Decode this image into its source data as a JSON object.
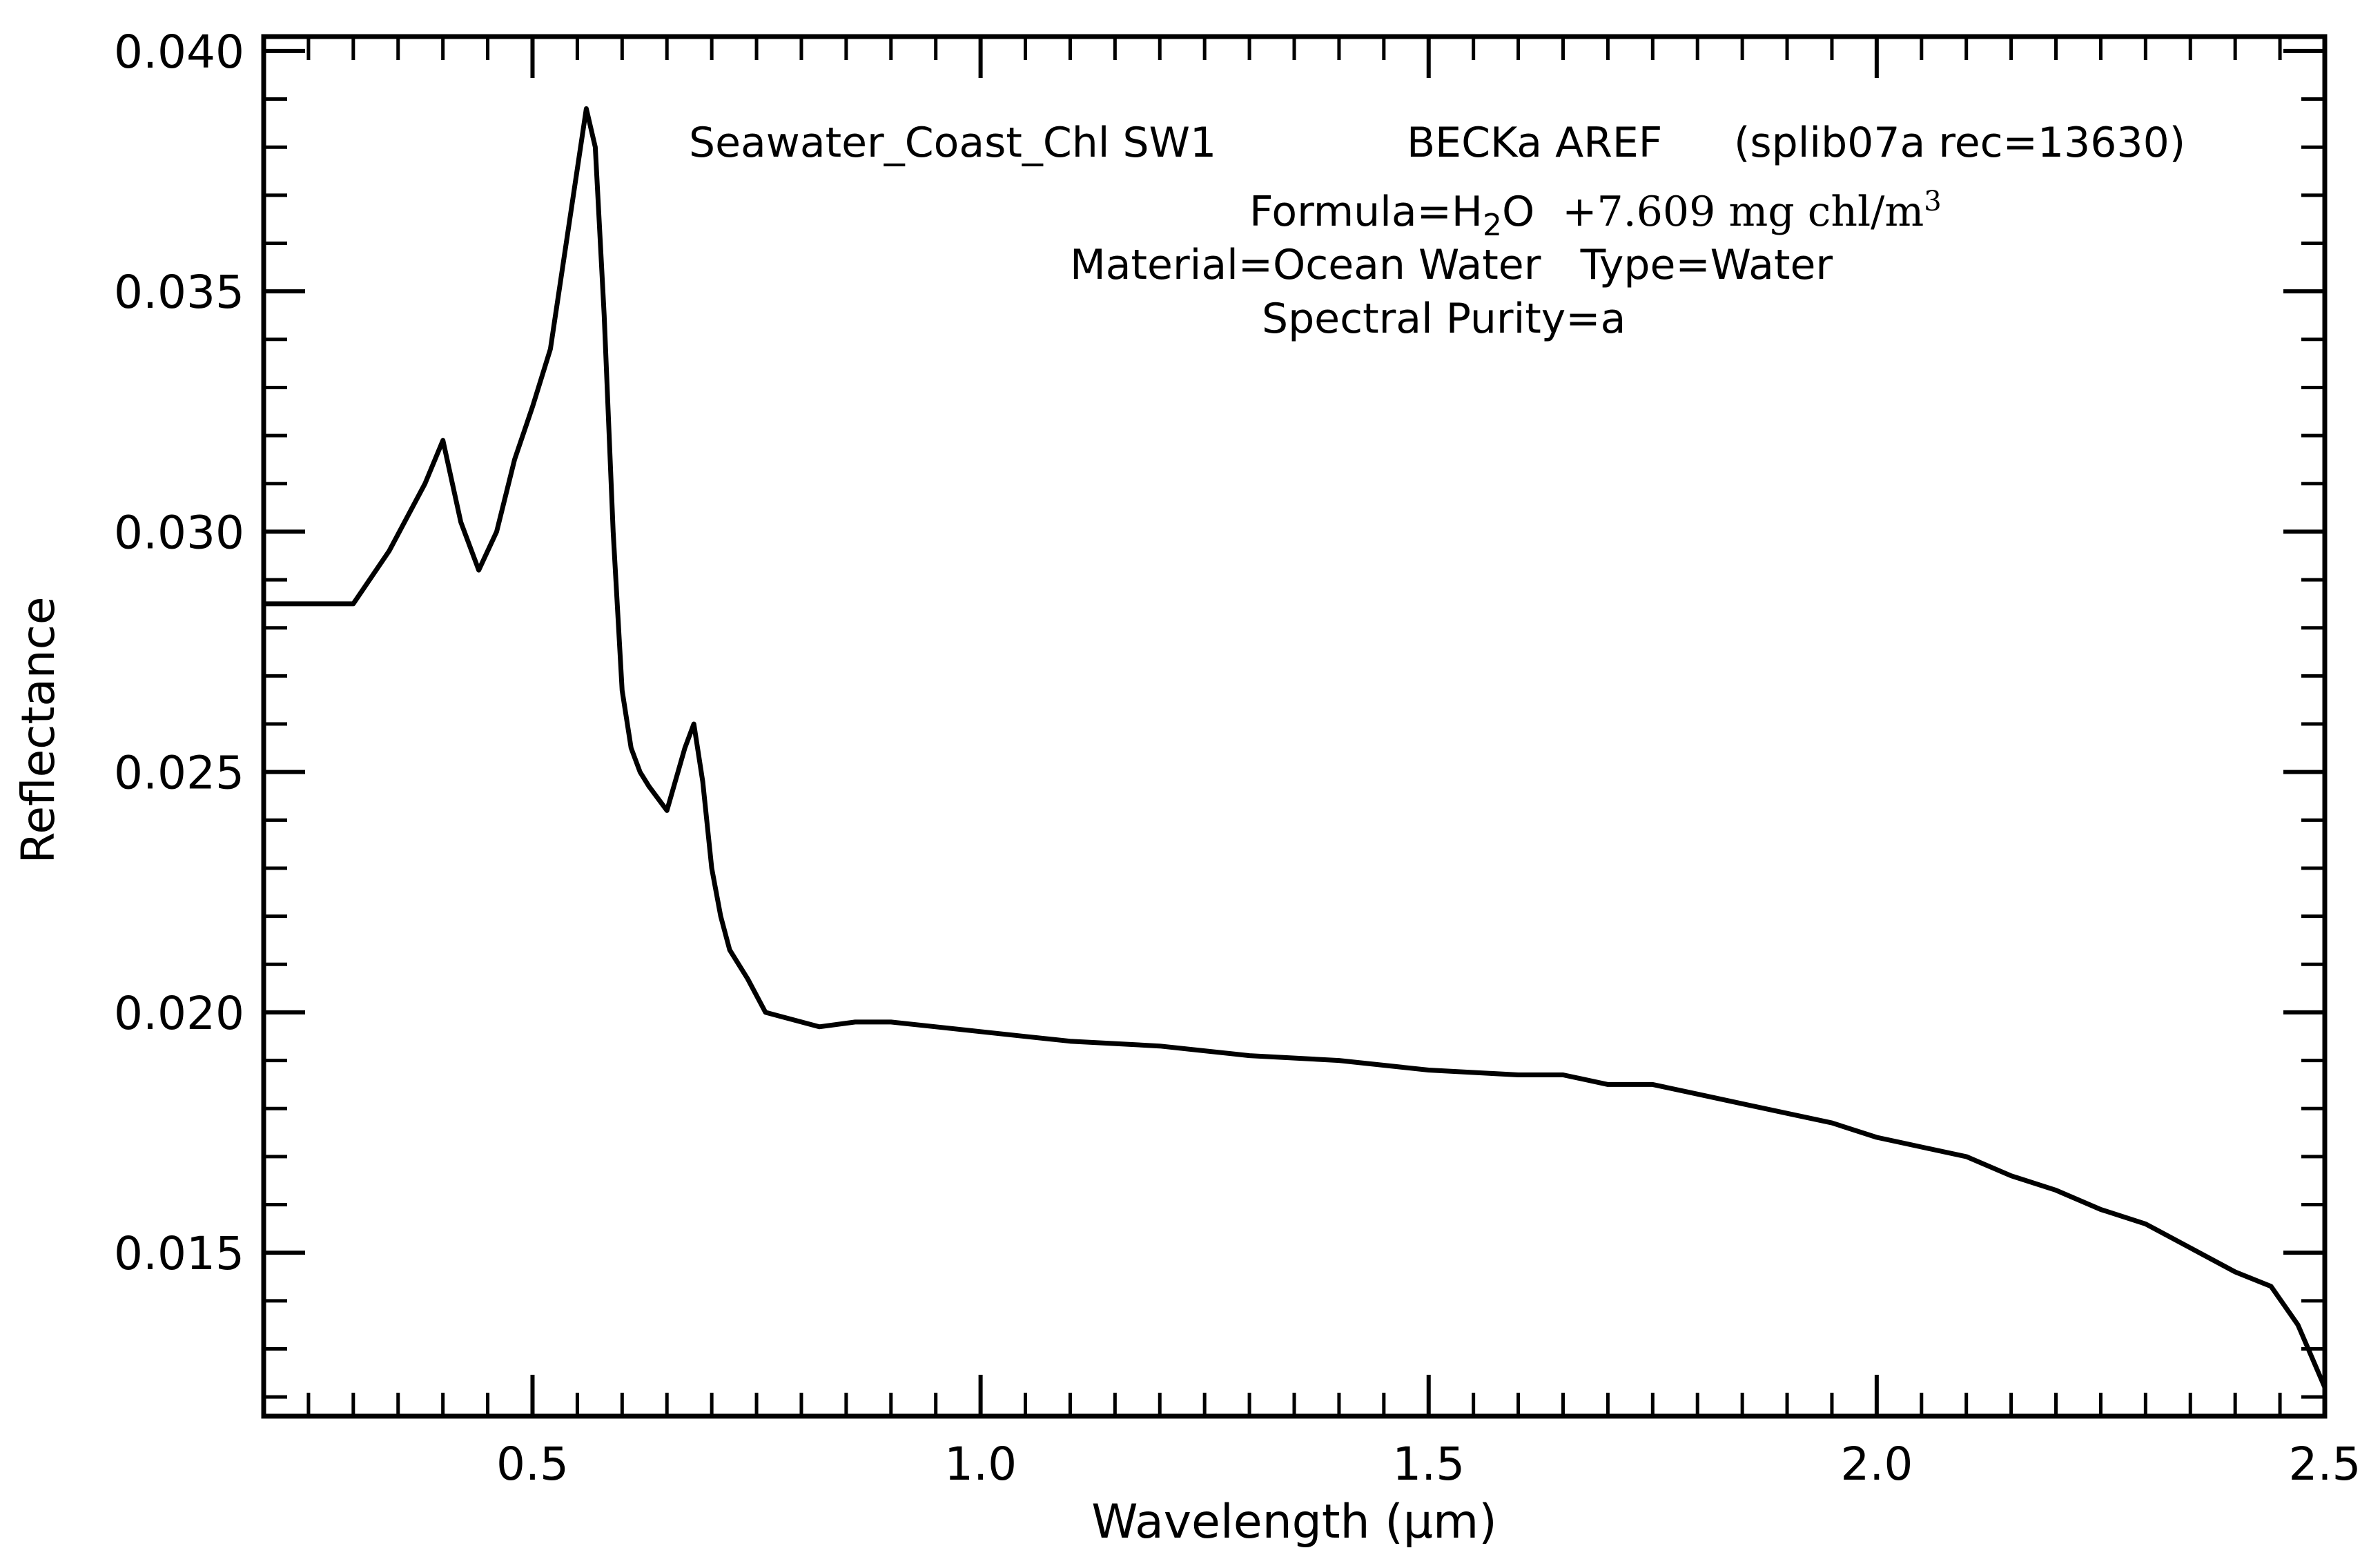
{
  "chart_data": {
    "type": "line",
    "xlabel_main": "Wavelength",
    "xlabel_unit": "(μm)",
    "ylabel": "Reflectance",
    "xlim": [
      0.2,
      2.5
    ],
    "ylim": [
      0.0116,
      0.0403
    ],
    "xticks": [
      0.5,
      1.0,
      1.5,
      2.0,
      2.5
    ],
    "xtick_labels": [
      "0.5",
      "1.0",
      "1.5",
      "2.0",
      "2.5"
    ],
    "yticks": [
      0.015,
      0.02,
      0.025,
      0.03,
      0.035,
      0.04
    ],
    "ytick_labels": [
      "0.015",
      "0.020",
      "0.025",
      "0.030",
      "0.035",
      "0.040"
    ],
    "annotations": {
      "line1_name": "Seawater_Coast_Chl SW1",
      "line1_source": "BECKa AREF",
      "line1_record": "(splib07a rec=13630)",
      "formula_prefix": "Formula=H",
      "formula_sub": "2",
      "formula_mid": "O",
      "formula_rest": "+7.609 mg chl/m",
      "formula_sup": "3",
      "material_line": "Material=Ocean Water   Type=Water",
      "purity_line": "Spectral Purity=a"
    },
    "series": [
      {
        "name": "Seawater_Coast_Chl SW1",
        "color": "#000000",
        "x": [
          0.2,
          0.3,
          0.34,
          0.38,
          0.4,
          0.42,
          0.44,
          0.46,
          0.48,
          0.5,
          0.52,
          0.54,
          0.56,
          0.57,
          0.58,
          0.59,
          0.6,
          0.61,
          0.62,
          0.63,
          0.65,
          0.67,
          0.68,
          0.69,
          0.7,
          0.71,
          0.72,
          0.74,
          0.76,
          0.78,
          0.82,
          0.86,
          0.9,
          0.95,
          1.0,
          1.05,
          1.1,
          1.2,
          1.3,
          1.4,
          1.5,
          1.6,
          1.65,
          1.7,
          1.75,
          1.8,
          1.85,
          1.9,
          1.95,
          2.0,
          2.05,
          2.1,
          2.15,
          2.2,
          2.25,
          2.3,
          2.35,
          2.4,
          2.44,
          2.47,
          2.5
        ],
        "y": [
          0.0285,
          0.0285,
          0.0296,
          0.031,
          0.0319,
          0.0302,
          0.0292,
          0.03,
          0.0315,
          0.0326,
          0.0338,
          0.0363,
          0.0388,
          0.038,
          0.0345,
          0.03,
          0.0267,
          0.0255,
          0.025,
          0.0247,
          0.0242,
          0.0255,
          0.026,
          0.0248,
          0.023,
          0.022,
          0.0213,
          0.0207,
          0.02,
          0.0199,
          0.0197,
          0.0198,
          0.0198,
          0.0197,
          0.0196,
          0.0195,
          0.0194,
          0.0193,
          0.0191,
          0.019,
          0.0188,
          0.0187,
          0.0187,
          0.0185,
          0.0185,
          0.0183,
          0.0181,
          0.0179,
          0.0177,
          0.0174,
          0.0172,
          0.017,
          0.0166,
          0.0163,
          0.0159,
          0.0156,
          0.0151,
          0.0146,
          0.0143,
          0.0135,
          0.0122
        ]
      }
    ]
  }
}
